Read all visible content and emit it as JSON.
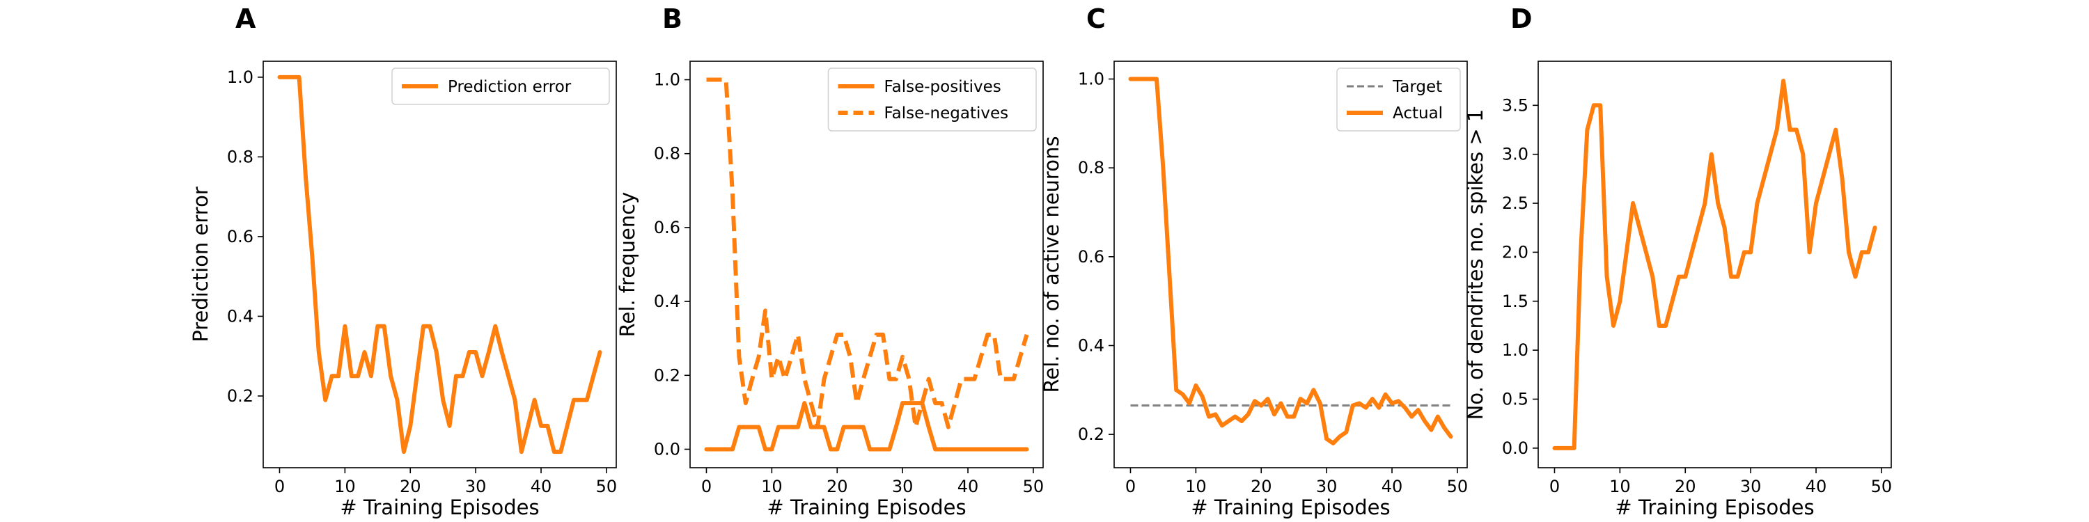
{
  "colors": {
    "accent": "#ff7f0e",
    "target": "#7f7f7f",
    "axes": "#000000"
  },
  "chart_data": [
    {
      "type": "line",
      "panel_label": "A",
      "title": "",
      "xlabel": "# Training Episodes",
      "ylabel": "Prediction error",
      "xlim": [
        -2.5,
        51.5
      ],
      "ylim": [
        0.02,
        1.04
      ],
      "xticks": [
        "0",
        "10",
        "20",
        "30",
        "40",
        "50"
      ],
      "yticks": [
        "0.2",
        "0.4",
        "0.6",
        "0.8",
        "1.0"
      ],
      "legend_position": "top-right",
      "series": [
        {
          "name": "Prediction error",
          "style": "solid",
          "x": [
            0,
            1,
            2,
            3,
            4,
            5,
            6,
            7,
            8,
            9,
            10,
            11,
            12,
            13,
            14,
            15,
            16,
            17,
            18,
            19,
            20,
            21,
            22,
            23,
            24,
            25,
            26,
            27,
            28,
            29,
            30,
            31,
            32,
            33,
            34,
            35,
            36,
            37,
            38,
            39,
            40,
            41,
            42,
            43,
            44,
            45,
            46,
            47,
            48,
            49
          ],
          "y": [
            1.0,
            1.0,
            1.0,
            1.0,
            0.75,
            0.55,
            0.31,
            0.19,
            0.25,
            0.25,
            0.375,
            0.25,
            0.25,
            0.31,
            0.25,
            0.375,
            0.375,
            0.25,
            0.19,
            0.06,
            0.125,
            0.25,
            0.375,
            0.375,
            0.31,
            0.19,
            0.125,
            0.25,
            0.25,
            0.31,
            0.31,
            0.25,
            0.31,
            0.375,
            0.31,
            0.25,
            0.19,
            0.06,
            0.125,
            0.19,
            0.125,
            0.125,
            0.06,
            0.06,
            0.125,
            0.19,
            0.19,
            0.19,
            0.25,
            0.31
          ]
        }
      ]
    },
    {
      "type": "line",
      "panel_label": "B",
      "title": "",
      "xlabel": "# Training Episodes",
      "ylabel": "Rel. frequency",
      "xlim": [
        -2.5,
        51.5
      ],
      "ylim": [
        -0.05,
        1.05
      ],
      "xticks": [
        "0",
        "10",
        "20",
        "30",
        "40",
        "50"
      ],
      "yticks": [
        "0.0",
        "0.2",
        "0.4",
        "0.6",
        "0.8",
        "1.0"
      ],
      "legend_position": "top-right",
      "series": [
        {
          "name": "False-positives",
          "style": "solid",
          "x": [
            0,
            1,
            2,
            3,
            4,
            5,
            6,
            7,
            8,
            9,
            10,
            11,
            12,
            13,
            14,
            15,
            16,
            17,
            18,
            19,
            20,
            21,
            22,
            23,
            24,
            25,
            26,
            27,
            28,
            29,
            30,
            31,
            32,
            33,
            34,
            35,
            36,
            37,
            38,
            39,
            40,
            41,
            42,
            43,
            44,
            45,
            46,
            47,
            48,
            49
          ],
          "y": [
            0,
            0,
            0,
            0,
            0,
            0.06,
            0.06,
            0.06,
            0.06,
            0,
            0,
            0.06,
            0.06,
            0.06,
            0.06,
            0.125,
            0.06,
            0.06,
            0.06,
            0,
            0,
            0.06,
            0.06,
            0.06,
            0.06,
            0,
            0,
            0,
            0,
            0.06,
            0.125,
            0.125,
            0.125,
            0.125,
            0.06,
            0,
            0,
            0,
            0,
            0,
            0,
            0,
            0,
            0,
            0,
            0,
            0,
            0,
            0,
            0
          ]
        },
        {
          "name": "False-negatives",
          "style": "dashed",
          "x": [
            0,
            1,
            2,
            3,
            4,
            5,
            6,
            7,
            8,
            9,
            10,
            11,
            12,
            13,
            14,
            15,
            16,
            17,
            18,
            19,
            20,
            21,
            22,
            23,
            24,
            25,
            26,
            27,
            28,
            29,
            30,
            31,
            32,
            33,
            34,
            35,
            36,
            37,
            38,
            39,
            40,
            41,
            42,
            43,
            44,
            45,
            46,
            47,
            48,
            49
          ],
          "y": [
            1.0,
            1.0,
            1.0,
            1.0,
            0.69,
            0.25,
            0.125,
            0.19,
            0.25,
            0.375,
            0.19,
            0.25,
            0.19,
            0.25,
            0.31,
            0.19,
            0.125,
            0.06,
            0.19,
            0.25,
            0.31,
            0.31,
            0.25,
            0.125,
            0.19,
            0.25,
            0.31,
            0.31,
            0.19,
            0.19,
            0.25,
            0.19,
            0.06,
            0.125,
            0.19,
            0.125,
            0.125,
            0.06,
            0.125,
            0.19,
            0.19,
            0.19,
            0.25,
            0.31,
            0.31,
            0.19,
            0.19,
            0.19,
            0.25,
            0.31
          ]
        }
      ]
    },
    {
      "type": "line",
      "panel_label": "C",
      "title": "",
      "xlabel": "# Training Episodes",
      "ylabel": "Rel. no. of active neurons",
      "xlim": [
        -2.5,
        51.5
      ],
      "ylim": [
        0.125,
        1.04
      ],
      "xticks": [
        "0",
        "10",
        "20",
        "30",
        "40",
        "50"
      ],
      "yticks": [
        "0.2",
        "0.4",
        "0.6",
        "0.8",
        "1.0"
      ],
      "legend_position": "top-right",
      "series": [
        {
          "name": "Target",
          "style": "dashed",
          "color": "#7f7f7f",
          "x": [
            0,
            49
          ],
          "y": [
            0.265,
            0.265
          ]
        },
        {
          "name": "Actual",
          "style": "solid",
          "x": [
            0,
            1,
            2,
            3,
            4,
            5,
            6,
            7,
            8,
            9,
            10,
            11,
            12,
            13,
            14,
            15,
            16,
            17,
            18,
            19,
            20,
            21,
            22,
            23,
            24,
            25,
            26,
            27,
            28,
            29,
            30,
            31,
            32,
            33,
            34,
            35,
            36,
            37,
            38,
            39,
            40,
            41,
            42,
            43,
            44,
            45,
            46,
            47,
            48,
            49
          ],
          "y": [
            1.0,
            1.0,
            1.0,
            1.0,
            1.0,
            0.8,
            0.55,
            0.3,
            0.29,
            0.27,
            0.31,
            0.285,
            0.24,
            0.245,
            0.22,
            0.23,
            0.24,
            0.23,
            0.245,
            0.275,
            0.265,
            0.28,
            0.245,
            0.27,
            0.24,
            0.24,
            0.28,
            0.27,
            0.3,
            0.27,
            0.19,
            0.18,
            0.195,
            0.205,
            0.265,
            0.27,
            0.26,
            0.28,
            0.26,
            0.29,
            0.27,
            0.275,
            0.26,
            0.24,
            0.255,
            0.23,
            0.21,
            0.24,
            0.215,
            0.195
          ]
        }
      ]
    },
    {
      "type": "line",
      "panel_label": "D",
      "title": "",
      "xlabel": "# Training Episodes",
      "ylabel": "No. of dendrites no. spikes > 1",
      "xlim": [
        -2.5,
        51.5
      ],
      "ylim": [
        -0.2,
        3.95
      ],
      "xticks": [
        "0",
        "10",
        "20",
        "30",
        "40",
        "50"
      ],
      "yticks": [
        "0.0",
        "0.5",
        "1.0",
        "1.5",
        "2.0",
        "2.5",
        "3.0",
        "3.5"
      ],
      "legend_position": "none",
      "series": [
        {
          "name": "",
          "style": "solid",
          "x": [
            0,
            1,
            2,
            3,
            4,
            5,
            6,
            7,
            8,
            9,
            10,
            11,
            12,
            13,
            14,
            15,
            16,
            17,
            18,
            19,
            20,
            21,
            22,
            23,
            24,
            25,
            26,
            27,
            28,
            29,
            30,
            31,
            32,
            33,
            34,
            35,
            36,
            37,
            38,
            39,
            40,
            41,
            42,
            43,
            44,
            45,
            46,
            47,
            48,
            49
          ],
          "y": [
            0,
            0,
            0,
            0,
            2.0,
            3.25,
            3.5,
            3.5,
            1.75,
            1.25,
            1.5,
            2.0,
            2.5,
            2.25,
            2.0,
            1.75,
            1.25,
            1.25,
            1.5,
            1.75,
            1.75,
            2.0,
            2.25,
            2.5,
            3.0,
            2.5,
            2.25,
            1.75,
            1.75,
            2.0,
            2.0,
            2.5,
            2.75,
            3.0,
            3.25,
            3.75,
            3.25,
            3.25,
            3.0,
            2.0,
            2.5,
            2.75,
            3.0,
            3.25,
            2.75,
            2.0,
            1.75,
            2.0,
            2.0,
            2.25
          ]
        }
      ]
    }
  ]
}
